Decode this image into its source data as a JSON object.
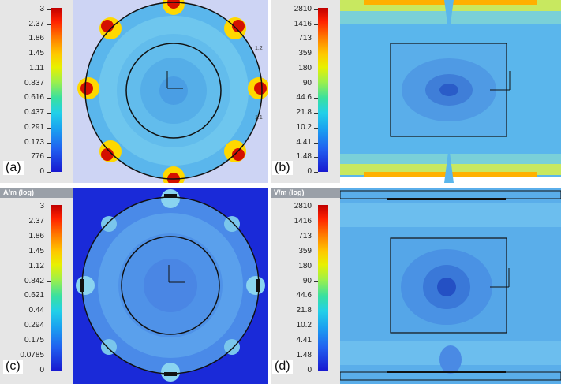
{
  "panels": {
    "a": {
      "tag": "(a)",
      "legend_title": "",
      "ticks": [
        "3",
        "2.37",
        "1.86",
        "1.45",
        "1.11",
        "0.837",
        "0.616",
        "0.437",
        "0.291",
        "0.173",
        "776",
        "0"
      ],
      "side_labels": [
        "1:2",
        "1:1"
      ]
    },
    "b": {
      "tag": "(b)",
      "legend_title": "",
      "ticks": [
        "2810",
        "1416",
        "713",
        "359",
        "180",
        "90",
        "44.6",
        "21.8",
        "10.2",
        "4.41",
        "1.48",
        "0"
      ]
    },
    "c": {
      "tag": "(c)",
      "legend_title": "A/m (log)",
      "ticks": [
        "3",
        "2.37",
        "1.86",
        "1.45",
        "1.12",
        "0.842",
        "0.621",
        "0.44",
        "0.294",
        "0.175",
        "0.0785",
        "0"
      ]
    },
    "d": {
      "tag": "(d)",
      "legend_title": "V/m (log)",
      "ticks": [
        "2810",
        "1416",
        "713",
        "359",
        "180",
        "90",
        "44.6",
        "21.8",
        "10.2",
        "4.41",
        "1.48",
        "0"
      ]
    }
  },
  "colors": {
    "background_light": "#cdd4f4",
    "background_deep": "#1a2ad8",
    "field_low": "#4a8ae8",
    "field_mid": "#5ab6ec",
    "field_high": "#ffd800",
    "field_peak": "#d41000"
  }
}
